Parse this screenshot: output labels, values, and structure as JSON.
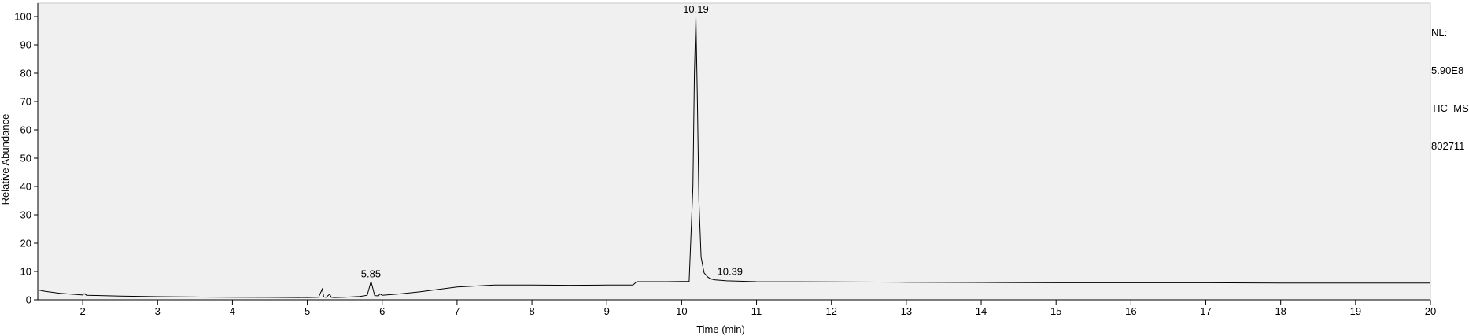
{
  "info": {
    "nl_label": "NL:",
    "nl_value": "5.90E8",
    "scan_filter": "TIC  MS",
    "sample": "802711"
  },
  "chart_data": {
    "type": "line",
    "title": "",
    "xlabel": "Time (min)",
    "ylabel": "Relative Abundance",
    "xlim": [
      1.4,
      20
    ],
    "ylim": [
      0,
      100
    ],
    "xticks": [
      2,
      3,
      4,
      5,
      6,
      7,
      8,
      9,
      10,
      11,
      12,
      13,
      14,
      15,
      16,
      17,
      18,
      19,
      20
    ],
    "yticks": [
      0,
      10,
      20,
      30,
      40,
      50,
      60,
      70,
      80,
      90,
      100
    ],
    "grid": false,
    "colors": {
      "background": "#f0f0f0",
      "trace": "#000000"
    },
    "peak_labels": [
      {
        "x": 10.19,
        "y": 100,
        "label": "10.19"
      },
      {
        "x": 5.85,
        "y": 6.5,
        "label": "5.85"
      },
      {
        "x": 10.39,
        "y": 7.3,
        "label": "10.39"
      }
    ],
    "series": [
      {
        "x": [
          1.4,
          1.5,
          1.7,
          2.0,
          2.02,
          2.05,
          2.5,
          3.0,
          3.5,
          4.0,
          4.5,
          5.0,
          5.15,
          5.2,
          5.22,
          5.25,
          5.3,
          5.32,
          5.36,
          5.5,
          5.7,
          5.8,
          5.83,
          5.85,
          5.87,
          5.9,
          5.95,
          5.97,
          6.0,
          6.2,
          6.5,
          7.0,
          7.5,
          8.0,
          8.5,
          9.0,
          9.35,
          9.4,
          9.8,
          10.1,
          10.15,
          10.17,
          10.19,
          10.21,
          10.23,
          10.26,
          10.3,
          10.35,
          10.39,
          10.45,
          10.6,
          11.0,
          12.0,
          13.0,
          14.0,
          15.0,
          16.0,
          17.0,
          18.0,
          19.0,
          20.0
        ],
        "y": [
          3.5,
          3.0,
          2.3,
          1.7,
          2.2,
          1.6,
          1.3,
          1.1,
          1.0,
          0.9,
          0.85,
          0.8,
          0.9,
          3.8,
          1.0,
          0.9,
          2.0,
          0.9,
          0.8,
          0.9,
          1.2,
          1.6,
          4.5,
          6.5,
          4.5,
          1.5,
          1.4,
          2.1,
          1.6,
          2.0,
          2.8,
          4.5,
          5.2,
          5.2,
          5.1,
          5.2,
          5.2,
          6.4,
          6.4,
          6.5,
          40,
          80,
          100,
          70,
          35,
          15,
          9.5,
          8.0,
          7.3,
          7.0,
          6.7,
          6.4,
          6.3,
          6.2,
          6.1,
          6.0,
          6.0,
          6.0,
          5.9,
          5.9,
          5.9
        ]
      }
    ]
  }
}
